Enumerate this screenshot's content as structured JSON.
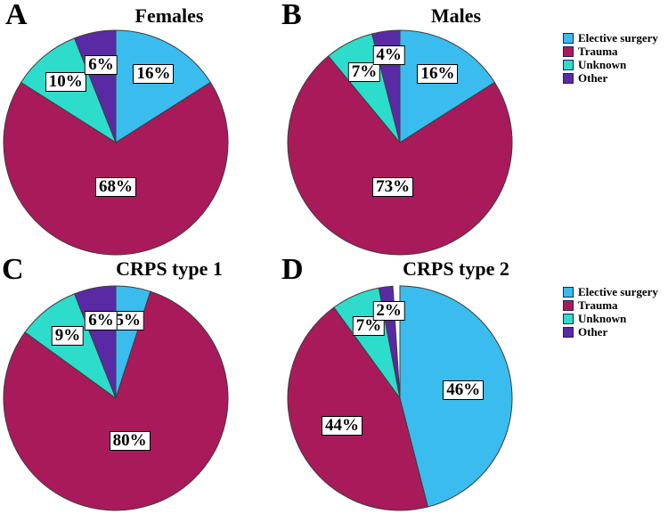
{
  "figure": {
    "background": "#ffffff",
    "palette": {
      "elective": "#3abcee",
      "trauma": "#a91a5b",
      "unknown": "#2edccb",
      "other": "#5a2aa4",
      "outline": "#3d3d3d",
      "label_box_bg": "#ffffff",
      "label_box_border": "#000000"
    },
    "legends": [
      {
        "position": "top-right",
        "items": [
          {
            "label": "Elective surgery",
            "color_key": "elective"
          },
          {
            "label": "Trauma",
            "color_key": "trauma"
          },
          {
            "label": "Unknown",
            "color_key": "unknown"
          },
          {
            "label": "Other",
            "color_key": "other"
          }
        ]
      },
      {
        "position": "bottom-right",
        "items": [
          {
            "label": "Elective surgery",
            "color_key": "elective"
          },
          {
            "label": "Trauma",
            "color_key": "trauma"
          },
          {
            "label": "Unknown",
            "color_key": "unknown"
          },
          {
            "label": "Other",
            "color_key": "other"
          }
        ]
      }
    ]
  },
  "chart_data": [
    {
      "type": "pie",
      "panel_label": "A",
      "title": "Females",
      "start_angle": "12-oclock",
      "direction": "clockwise",
      "categories": [
        "Elective surgery",
        "Trauma",
        "Unknown",
        "Other"
      ],
      "values": [
        16,
        68,
        10,
        6
      ],
      "slice_labels": [
        "16%",
        "68%",
        "10%",
        "6%"
      ],
      "legend_position": "right"
    },
    {
      "type": "pie",
      "panel_label": "B",
      "title": "Males",
      "start_angle": "12-oclock",
      "direction": "clockwise",
      "categories": [
        "Elective surgery",
        "Trauma",
        "Unknown",
        "Other"
      ],
      "values": [
        16,
        73,
        7,
        4
      ],
      "slice_labels": [
        "16%",
        "73%",
        "7%",
        "4%"
      ],
      "legend_position": "right"
    },
    {
      "type": "pie",
      "panel_label": "C",
      "title": "CRPS type 1",
      "start_angle": "12-oclock",
      "direction": "clockwise",
      "categories": [
        "Elective surgery",
        "Trauma",
        "Unknown",
        "Other"
      ],
      "values": [
        5,
        80,
        9,
        6
      ],
      "slice_labels": [
        "5%",
        "80%",
        "9%",
        "6%"
      ],
      "legend_position": "right"
    },
    {
      "type": "pie",
      "panel_label": "D",
      "title": "CRPS type 2",
      "start_angle": "12-oclock",
      "direction": "clockwise",
      "categories": [
        "Elective surgery",
        "Trauma",
        "Unknown",
        "Other"
      ],
      "values": [
        46,
        44,
        7,
        2
      ],
      "slice_labels": [
        "46%",
        "44%",
        "7%",
        "2%"
      ],
      "legend_position": "right"
    }
  ]
}
